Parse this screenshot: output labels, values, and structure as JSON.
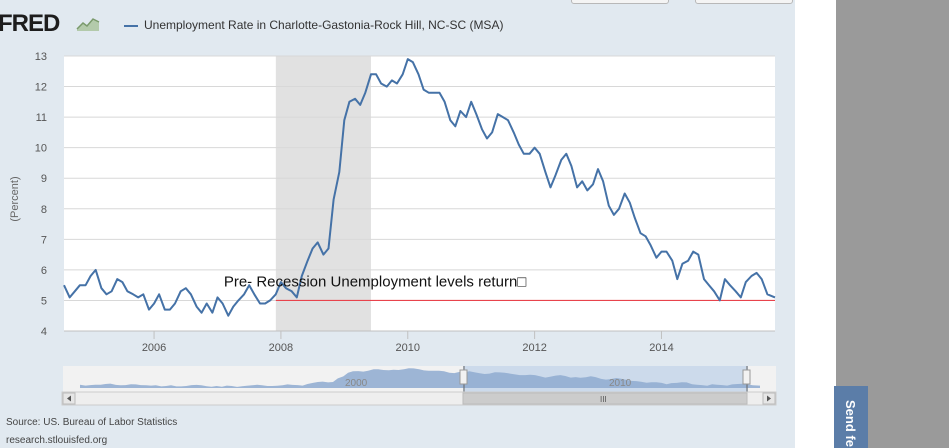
{
  "header": {
    "logo_text": "FRED",
    "legend_label": "Unemployment Rate in Charlotte-Gastonia-Rock Hill, NC-SC (MSA)"
  },
  "footer": {
    "source": "Source: US. Bureau of Labor Statistics",
    "site": "research.stlouisfed.org"
  },
  "side_tab": {
    "label": "Send fe"
  },
  "colors": {
    "series": "#4572a7",
    "recession_band": "#e1e1e1",
    "threshold_line": "#e8434c",
    "panel_bg": "#e1e9f0"
  },
  "chart_data": {
    "type": "line",
    "title": "",
    "xlabel": "",
    "ylabel": "(Percent)",
    "ylim": [
      4,
      13
    ],
    "y_ticks": [
      4,
      5,
      6,
      7,
      8,
      9,
      10,
      11,
      12,
      13
    ],
    "x_tick_labels": [
      "2006",
      "2008",
      "2010",
      "2012",
      "2014"
    ],
    "xlim": [
      2004.58,
      2015.79
    ],
    "grid": true,
    "recession_shading": {
      "start": 2007.92,
      "end": 2009.42
    },
    "reference_line": {
      "value": 5.0,
      "start": 2007.92,
      "end": 2015.79
    },
    "annotation": {
      "text": "Pre- Recession Unemployment levels return□",
      "x": 2007.1,
      "y": 5.45
    },
    "series": [
      {
        "name": "Unemployment Rate in Charlotte-Gastonia-Rock Hill, NC-SC (MSA)",
        "x": [
          2004.58,
          2004.67,
          2004.75,
          2004.83,
          2004.92,
          2005.0,
          2005.08,
          2005.17,
          2005.25,
          2005.33,
          2005.42,
          2005.5,
          2005.58,
          2005.67,
          2005.75,
          2005.83,
          2005.92,
          2006.0,
          2006.08,
          2006.17,
          2006.25,
          2006.33,
          2006.42,
          2006.5,
          2006.58,
          2006.67,
          2006.75,
          2006.83,
          2006.92,
          2007.0,
          2007.08,
          2007.17,
          2007.25,
          2007.33,
          2007.42,
          2007.5,
          2007.58,
          2007.67,
          2007.75,
          2007.83,
          2007.92,
          2008.0,
          2008.08,
          2008.17,
          2008.25,
          2008.33,
          2008.42,
          2008.5,
          2008.58,
          2008.67,
          2008.75,
          2008.83,
          2008.92,
          2009.0,
          2009.08,
          2009.17,
          2009.25,
          2009.33,
          2009.42,
          2009.5,
          2009.58,
          2009.67,
          2009.75,
          2009.83,
          2009.92,
          2010.0,
          2010.08,
          2010.17,
          2010.25,
          2010.33,
          2010.42,
          2010.5,
          2010.58,
          2010.67,
          2010.75,
          2010.83,
          2010.92,
          2011.0,
          2011.08,
          2011.17,
          2011.25,
          2011.33,
          2011.42,
          2011.5,
          2011.58,
          2011.67,
          2011.75,
          2011.83,
          2011.92,
          2012.0,
          2012.08,
          2012.17,
          2012.25,
          2012.33,
          2012.42,
          2012.5,
          2012.58,
          2012.67,
          2012.75,
          2012.83,
          2012.92,
          2013.0,
          2013.08,
          2013.17,
          2013.25,
          2013.33,
          2013.42,
          2013.5,
          2013.58,
          2013.67,
          2013.75,
          2013.83,
          2013.92,
          2014.0,
          2014.08,
          2014.17,
          2014.25,
          2014.33,
          2014.42,
          2014.5,
          2014.58,
          2014.67,
          2014.75,
          2014.83,
          2014.92,
          2015.0,
          2015.08,
          2015.17,
          2015.25,
          2015.33,
          2015.42,
          2015.5,
          2015.58,
          2015.67,
          2015.79
        ],
        "values": [
          5.5,
          5.1,
          5.3,
          5.5,
          5.5,
          5.8,
          6.0,
          5.4,
          5.2,
          5.3,
          5.7,
          5.6,
          5.3,
          5.2,
          5.1,
          5.2,
          4.7,
          4.9,
          5.2,
          4.7,
          4.7,
          4.9,
          5.3,
          5.4,
          5.2,
          4.8,
          4.6,
          4.9,
          4.6,
          5.1,
          4.9,
          4.5,
          4.8,
          5.0,
          5.2,
          5.5,
          5.2,
          4.9,
          4.9,
          5.0,
          5.2,
          5.6,
          5.4,
          5.3,
          5.1,
          5.8,
          6.3,
          6.7,
          6.9,
          6.5,
          6.7,
          8.3,
          9.2,
          10.9,
          11.5,
          11.6,
          11.4,
          11.8,
          12.4,
          12.4,
          12.1,
          12.0,
          12.2,
          12.1,
          12.4,
          12.9,
          12.8,
          12.4,
          11.9,
          11.8,
          11.8,
          11.8,
          11.5,
          10.9,
          10.7,
          11.2,
          11.0,
          11.5,
          11.1,
          10.6,
          10.3,
          10.5,
          11.1,
          11.0,
          10.9,
          10.5,
          10.1,
          9.8,
          9.8,
          10.0,
          9.8,
          9.2,
          8.7,
          9.1,
          9.6,
          9.8,
          9.4,
          8.7,
          8.9,
          8.6,
          8.8,
          9.3,
          8.9,
          8.1,
          7.8,
          8.0,
          8.5,
          8.2,
          7.7,
          7.2,
          7.1,
          6.8,
          6.4,
          6.6,
          6.6,
          6.3,
          5.7,
          6.2,
          6.3,
          6.6,
          6.5,
          5.7,
          5.5,
          5.3,
          5.0,
          5.7,
          5.5,
          5.3,
          5.1,
          5.6,
          5.8,
          5.9,
          5.7,
          5.2,
          5.1
        ]
      }
    ]
  },
  "navigator": {
    "labels": [
      "2000",
      "2010"
    ],
    "scroll_label": "III"
  }
}
